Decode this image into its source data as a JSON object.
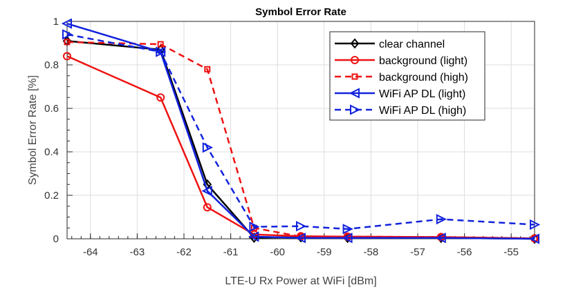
{
  "chart_data": {
    "type": "line",
    "title": "Symbol Error Rate",
    "xlabel": "LTE-U Rx Power at WiFi [dBm]",
    "ylabel": "Symbol Error Rate [%]",
    "xlim": [
      -64.5,
      -54.5
    ],
    "ylim": [
      0,
      1
    ],
    "grid": true,
    "legend_position": "top-right",
    "x": [
      -64.5,
      -62.5,
      -61.5,
      -60.5,
      -59.5,
      -58.5,
      -56.5,
      -54.5
    ],
    "xticks": [
      -64,
      -63,
      -62,
      -61,
      -60,
      -59,
      -58,
      -57,
      -56,
      -55
    ],
    "xtick_labels": [
      "-64",
      "-63",
      "-62",
      "-61",
      "-60",
      "-59",
      "-58",
      "-57",
      "-56",
      "-55"
    ],
    "yticks": [
      0,
      0.2,
      0.4,
      0.6,
      0.8,
      1
    ],
    "ytick_labels": [
      "0",
      "0.2",
      "0.4",
      "0.6",
      "0.8",
      "1"
    ],
    "series": [
      {
        "name": "clear channel",
        "color": "#000000",
        "dash": "solid",
        "marker": "diamond",
        "values": [
          0.91,
          0.87,
          0.25,
          0.005,
          0.007,
          0.004,
          0.004,
          0.0
        ]
      },
      {
        "name": "background (light)",
        "color": "#ee1111",
        "dash": "solid",
        "marker": "circle",
        "values": [
          0.84,
          0.65,
          0.145,
          0.02,
          0.012,
          0.01,
          0.008,
          0.002
        ]
      },
      {
        "name": "background (high)",
        "color": "#ee1111",
        "dash": "dashed",
        "marker": "square",
        "values": [
          0.905,
          0.895,
          0.78,
          0.05,
          0.01,
          0.01,
          0.008,
          0.002
        ]
      },
      {
        "name": "WiFi AP DL (light)",
        "color": "#1122dd",
        "dash": "solid",
        "marker": "triangle-left",
        "values": [
          0.99,
          0.86,
          0.22,
          0.01,
          0.004,
          0.004,
          0.004,
          0.0
        ]
      },
      {
        "name": "WiFi AP DL (high)",
        "color": "#1122dd",
        "dash": "dashed",
        "marker": "triangle-right",
        "values": [
          0.94,
          0.86,
          0.42,
          0.055,
          0.058,
          0.045,
          0.09,
          0.065
        ]
      }
    ]
  }
}
